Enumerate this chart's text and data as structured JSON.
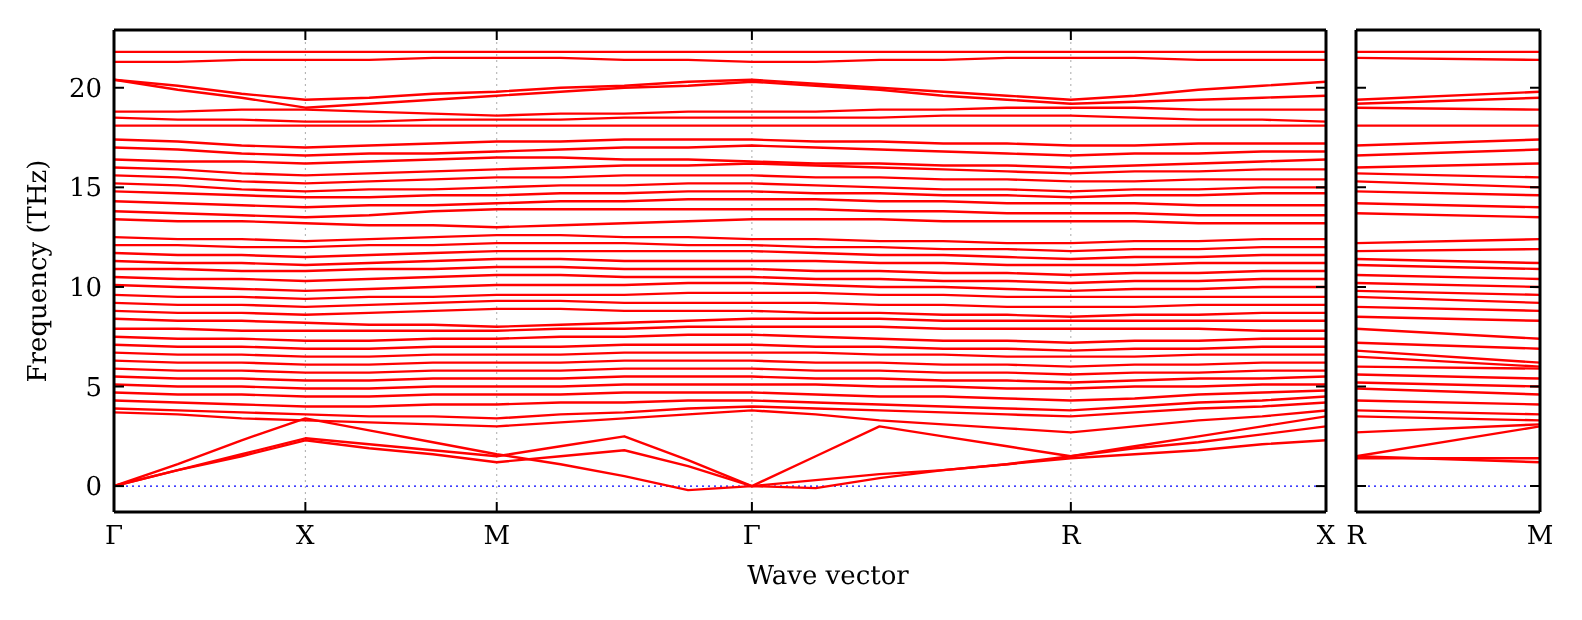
{
  "chart_data": [
    {
      "type": "line",
      "xlabel": "Wave vector",
      "ylabel": "Frequency (THz)",
      "grid": "x",
      "line_style": "solid",
      "marker": "none",
      "categories": [
        "Γ",
        null,
        null,
        "X",
        null,
        null,
        "M",
        null,
        null,
        null,
        "Γ",
        null,
        null,
        null,
        null,
        "R",
        null,
        null,
        null,
        "X"
      ],
      "ylim": [
        -1.3,
        22.9
      ],
      "yticks": [
        0,
        5,
        10,
        15,
        20
      ],
      "ref_lines": [
        {
          "axis": "y",
          "value": 0,
          "color": "#0000ff",
          "line_style": "dotted"
        }
      ],
      "series": [
        {
          "color": "#ff0000",
          "values": [
            21.8,
            21.8,
            21.8,
            21.8,
            21.8,
            21.8,
            21.8,
            21.8,
            21.8,
            21.8,
            21.8,
            21.8,
            21.8,
            21.8,
            21.8,
            21.8,
            21.8,
            21.8,
            21.8,
            21.8
          ]
        },
        {
          "color": "#ff0000",
          "values": [
            21.3,
            21.3,
            21.4,
            21.4,
            21.4,
            21.5,
            21.5,
            21.5,
            21.4,
            21.4,
            21.3,
            21.3,
            21.4,
            21.4,
            21.5,
            21.5,
            21.5,
            21.4,
            21.4,
            21.4
          ]
        },
        {
          "color": "#ff0000",
          "values": [
            20.4,
            20.1,
            19.7,
            19.4,
            19.5,
            19.7,
            19.8,
            20.0,
            20.1,
            20.3,
            20.4,
            20.2,
            20.0,
            19.8,
            19.6,
            19.4,
            19.6,
            19.9,
            20.1,
            20.3
          ]
        },
        {
          "color": "#ff0000",
          "values": [
            20.4,
            19.9,
            19.5,
            19.0,
            19.2,
            19.4,
            19.6,
            19.8,
            20.0,
            20.1,
            20.3,
            20.1,
            19.9,
            19.6,
            19.4,
            19.2,
            19.3,
            19.4,
            19.5,
            19.6
          ]
        },
        {
          "color": "#ff0000",
          "values": [
            18.8,
            18.8,
            18.9,
            18.9,
            18.8,
            18.7,
            18.6,
            18.7,
            18.7,
            18.8,
            18.8,
            18.8,
            18.9,
            18.9,
            19.0,
            19.0,
            19.0,
            18.9,
            18.9,
            18.9
          ]
        },
        {
          "color": "#ff0000",
          "values": [
            18.5,
            18.4,
            18.4,
            18.3,
            18.3,
            18.4,
            18.4,
            18.4,
            18.5,
            18.5,
            18.5,
            18.5,
            18.5,
            18.6,
            18.6,
            18.6,
            18.5,
            18.4,
            18.4,
            18.3
          ]
        },
        {
          "color": "#ff0000",
          "values": [
            18.1,
            18.1,
            18.1,
            18.1,
            18.1,
            18.1,
            18.1,
            18.1,
            18.1,
            18.1,
            18.1,
            18.1,
            18.1,
            18.1,
            18.1,
            18.1,
            18.1,
            18.1,
            18.1,
            18.1
          ]
        },
        {
          "color": "#ff0000",
          "values": [
            17.4,
            17.3,
            17.1,
            17.0,
            17.1,
            17.2,
            17.3,
            17.3,
            17.4,
            17.4,
            17.4,
            17.3,
            17.3,
            17.2,
            17.2,
            17.1,
            17.1,
            17.2,
            17.2,
            17.2
          ]
        },
        {
          "color": "#ff0000",
          "values": [
            17.0,
            16.9,
            16.7,
            16.6,
            16.7,
            16.7,
            16.8,
            16.9,
            17.0,
            17.0,
            17.1,
            17.0,
            16.9,
            16.8,
            16.7,
            16.6,
            16.7,
            16.7,
            16.8,
            16.8
          ]
        },
        {
          "color": "#ff0000",
          "values": [
            16.4,
            16.3,
            16.3,
            16.2,
            16.3,
            16.4,
            16.5,
            16.5,
            16.4,
            16.4,
            16.3,
            16.2,
            16.2,
            16.1,
            16.1,
            16.0,
            16.1,
            16.2,
            16.3,
            16.4
          ]
        },
        {
          "color": "#ff0000",
          "values": [
            16.0,
            15.9,
            15.7,
            15.6,
            15.7,
            15.8,
            15.9,
            16.0,
            16.1,
            16.1,
            16.2,
            16.1,
            16.0,
            15.9,
            15.8,
            15.7,
            15.8,
            15.8,
            15.9,
            15.9
          ]
        },
        {
          "color": "#ff0000",
          "values": [
            15.6,
            15.5,
            15.3,
            15.2,
            15.3,
            15.4,
            15.5,
            15.5,
            15.6,
            15.6,
            15.6,
            15.5,
            15.5,
            15.4,
            15.4,
            15.3,
            15.3,
            15.4,
            15.4,
            15.4
          ]
        },
        {
          "color": "#ff0000",
          "values": [
            15.2,
            15.1,
            14.9,
            14.8,
            14.9,
            14.9,
            15.0,
            15.1,
            15.1,
            15.2,
            15.2,
            15.1,
            15.0,
            14.9,
            14.9,
            14.8,
            14.9,
            14.9,
            15.0,
            15.0
          ]
        },
        {
          "color": "#ff0000",
          "values": [
            14.8,
            14.7,
            14.6,
            14.5,
            14.5,
            14.6,
            14.6,
            14.7,
            14.7,
            14.8,
            14.8,
            14.7,
            14.7,
            14.6,
            14.6,
            14.5,
            14.6,
            14.6,
            14.7,
            14.7
          ]
        },
        {
          "color": "#ff0000",
          "values": [
            14.3,
            14.2,
            14.1,
            14.0,
            14.1,
            14.1,
            14.2,
            14.3,
            14.3,
            14.4,
            14.4,
            14.4,
            14.3,
            14.3,
            14.2,
            14.2,
            14.2,
            14.1,
            14.1,
            14.1
          ]
        },
        {
          "color": "#ff0000",
          "values": [
            13.8,
            13.7,
            13.6,
            13.5,
            13.6,
            13.8,
            13.9,
            13.9,
            13.9,
            13.9,
            13.9,
            13.9,
            13.8,
            13.8,
            13.7,
            13.7,
            13.7,
            13.6,
            13.6,
            13.6
          ]
        },
        {
          "color": "#ff0000",
          "values": [
            13.4,
            13.3,
            13.3,
            13.2,
            13.1,
            13.1,
            13.0,
            13.1,
            13.2,
            13.3,
            13.4,
            13.4,
            13.4,
            13.3,
            13.3,
            13.3,
            13.3,
            13.2,
            13.2,
            13.2
          ]
        },
        {
          "color": "#ff0000",
          "values": [
            12.5,
            12.4,
            12.4,
            12.3,
            12.4,
            12.5,
            12.6,
            12.6,
            12.5,
            12.5,
            12.4,
            12.4,
            12.3,
            12.3,
            12.2,
            12.2,
            12.3,
            12.3,
            12.4,
            12.4
          ]
        },
        {
          "color": "#ff0000",
          "values": [
            12.1,
            12.1,
            12.0,
            12.0,
            12.1,
            12.1,
            12.2,
            12.2,
            12.2,
            12.1,
            12.1,
            12.0,
            12.0,
            11.9,
            11.9,
            11.8,
            11.9,
            11.9,
            12.0,
            12.0
          ]
        },
        {
          "color": "#ff0000",
          "values": [
            11.7,
            11.6,
            11.6,
            11.5,
            11.6,
            11.7,
            11.8,
            11.8,
            11.8,
            11.8,
            11.8,
            11.7,
            11.6,
            11.6,
            11.5,
            11.4,
            11.5,
            11.5,
            11.6,
            11.6
          ]
        },
        {
          "color": "#ff0000",
          "values": [
            11.3,
            11.2,
            11.2,
            11.1,
            11.2,
            11.3,
            11.4,
            11.4,
            11.3,
            11.3,
            11.3,
            11.3,
            11.2,
            11.2,
            11.1,
            11.1,
            11.1,
            11.2,
            11.2,
            11.2
          ]
        },
        {
          "color": "#ff0000",
          "values": [
            10.9,
            10.9,
            10.8,
            10.8,
            10.9,
            10.9,
            11.0,
            11.0,
            10.9,
            10.9,
            10.9,
            10.8,
            10.8,
            10.7,
            10.7,
            10.6,
            10.7,
            10.7,
            10.8,
            10.8
          ]
        },
        {
          "color": "#ff0000",
          "values": [
            10.5,
            10.4,
            10.4,
            10.3,
            10.4,
            10.5,
            10.6,
            10.6,
            10.5,
            10.5,
            10.5,
            10.4,
            10.4,
            10.3,
            10.3,
            10.2,
            10.3,
            10.3,
            10.4,
            10.4
          ]
        },
        {
          "color": "#ff0000",
          "values": [
            10.1,
            10.0,
            9.9,
            9.8,
            9.9,
            10.0,
            10.1,
            10.1,
            10.1,
            10.2,
            10.2,
            10.1,
            10.0,
            10.0,
            9.9,
            9.8,
            9.9,
            9.9,
            10.0,
            10.0
          ]
        },
        {
          "color": "#ff0000",
          "values": [
            9.6,
            9.5,
            9.5,
            9.4,
            9.5,
            9.5,
            9.6,
            9.6,
            9.6,
            9.7,
            9.7,
            9.7,
            9.6,
            9.6,
            9.5,
            9.5,
            9.5,
            9.5,
            9.5,
            9.5
          ]
        },
        {
          "color": "#ff0000",
          "values": [
            9.2,
            9.1,
            9.1,
            9.0,
            9.1,
            9.2,
            9.3,
            9.3,
            9.2,
            9.2,
            9.2,
            9.2,
            9.1,
            9.1,
            9.0,
            9.0,
            9.0,
            9.1,
            9.1,
            9.1
          ]
        },
        {
          "color": "#ff0000",
          "values": [
            8.8,
            8.7,
            8.7,
            8.6,
            8.7,
            8.8,
            8.9,
            8.9,
            8.8,
            8.8,
            8.8,
            8.7,
            8.7,
            8.6,
            8.6,
            8.5,
            8.6,
            8.6,
            8.7,
            8.7
          ]
        },
        {
          "color": "#ff0000",
          "values": [
            8.4,
            8.3,
            8.3,
            8.2,
            8.1,
            8.1,
            8.0,
            8.1,
            8.2,
            8.3,
            8.4,
            8.4,
            8.4,
            8.3,
            8.3,
            8.3,
            8.3,
            8.3,
            8.3,
            8.3
          ]
        },
        {
          "color": "#ff0000",
          "values": [
            7.9,
            7.9,
            7.8,
            7.8,
            7.8,
            7.8,
            7.8,
            7.9,
            7.9,
            8.0,
            8.0,
            8.0,
            8.0,
            7.9,
            7.9,
            7.9,
            7.9,
            7.9,
            7.8,
            7.8
          ]
        },
        {
          "color": "#ff0000",
          "values": [
            7.5,
            7.4,
            7.4,
            7.3,
            7.3,
            7.4,
            7.4,
            7.5,
            7.5,
            7.6,
            7.6,
            7.5,
            7.4,
            7.3,
            7.3,
            7.2,
            7.3,
            7.3,
            7.4,
            7.4
          ]
        },
        {
          "color": "#ff0000",
          "values": [
            7.1,
            7.0,
            7.0,
            6.9,
            6.9,
            7.0,
            7.0,
            7.0,
            7.1,
            7.1,
            7.1,
            7.0,
            7.0,
            6.9,
            6.9,
            6.8,
            6.9,
            6.9,
            7.0,
            7.0
          ]
        },
        {
          "color": "#ff0000",
          "values": [
            6.7,
            6.6,
            6.6,
            6.5,
            6.5,
            6.6,
            6.6,
            6.6,
            6.7,
            6.7,
            6.7,
            6.7,
            6.6,
            6.6,
            6.5,
            6.5,
            6.5,
            6.6,
            6.6,
            6.6
          ]
        },
        {
          "color": "#ff0000",
          "values": [
            6.3,
            6.2,
            6.2,
            6.1,
            6.1,
            6.2,
            6.2,
            6.2,
            6.3,
            6.3,
            6.3,
            6.2,
            6.2,
            6.1,
            6.1,
            6.0,
            6.1,
            6.1,
            6.2,
            6.2
          ]
        },
        {
          "color": "#ff0000",
          "values": [
            5.9,
            5.8,
            5.8,
            5.7,
            5.7,
            5.8,
            5.8,
            5.8,
            5.9,
            5.9,
            5.9,
            5.8,
            5.8,
            5.7,
            5.7,
            5.6,
            5.7,
            5.7,
            5.8,
            5.8
          ]
        },
        {
          "color": "#ff0000",
          "values": [
            5.5,
            5.4,
            5.4,
            5.3,
            5.3,
            5.4,
            5.4,
            5.4,
            5.5,
            5.5,
            5.5,
            5.4,
            5.4,
            5.3,
            5.3,
            5.2,
            5.3,
            5.4,
            5.4,
            5.5
          ]
        },
        {
          "color": "#ff0000",
          "values": [
            5.1,
            5.0,
            5.0,
            4.9,
            4.9,
            5.0,
            5.0,
            5.0,
            5.1,
            5.1,
            5.1,
            5.1,
            5.0,
            5.0,
            4.9,
            4.9,
            5.0,
            5.0,
            5.1,
            5.1
          ]
        },
        {
          "color": "#ff0000",
          "values": [
            4.7,
            4.6,
            4.6,
            4.5,
            4.5,
            4.6,
            4.6,
            4.6,
            4.7,
            4.7,
            4.7,
            4.6,
            4.5,
            4.5,
            4.4,
            4.3,
            4.4,
            4.6,
            4.7,
            4.8
          ]
        },
        {
          "color": "#ff0000",
          "values": [
            4.3,
            4.2,
            4.1,
            4.0,
            4.0,
            4.1,
            4.1,
            4.2,
            4.2,
            4.3,
            4.3,
            4.2,
            4.1,
            4.0,
            3.9,
            3.8,
            4.0,
            4.2,
            4.3,
            4.5
          ]
        },
        {
          "color": "#ff0000",
          "values": [
            3.9,
            3.8,
            3.7,
            3.6,
            3.5,
            3.5,
            3.4,
            3.6,
            3.7,
            3.9,
            4.0,
            3.9,
            3.8,
            3.7,
            3.6,
            3.5,
            3.7,
            3.9,
            4.0,
            4.2
          ]
        },
        {
          "color": "#ff0000",
          "values": [
            3.7,
            3.6,
            3.4,
            3.3,
            3.2,
            3.1,
            3.0,
            3.2,
            3.4,
            3.6,
            3.8,
            3.6,
            3.3,
            3.1,
            2.9,
            2.7,
            3.0,
            3.3,
            3.5,
            3.8
          ]
        },
        {
          "color": "#ff0000",
          "values": [
            0,
            0.8,
            1.5,
            2.3,
            1.9,
            1.6,
            1.2,
            1.5,
            1.8,
            1.0,
            0,
            0.3,
            0.6,
            0.8,
            1.1,
            1.4,
            1.6,
            1.8,
            2.1,
            2.3
          ]
        },
        {
          "color": "#ff0000",
          "values": [
            0,
            0.8,
            1.6,
            2.4,
            2.1,
            1.8,
            1.5,
            2.0,
            2.5,
            1.3,
            0,
            1.5,
            3.0,
            2.5,
            2.0,
            1.5,
            2.0,
            2.5,
            3.0,
            3.5
          ]
        },
        {
          "color": "#ff0000",
          "values": [
            0,
            1.1,
            2.3,
            3.4,
            2.8,
            2.2,
            1.6,
            1.1,
            0.5,
            -0.2,
            0,
            -0.1,
            0.4,
            0.8,
            1.1,
            1.5,
            1.9,
            2.2,
            2.6,
            3.0
          ]
        }
      ]
    },
    {
      "type": "line",
      "line_style": "solid",
      "marker": "none",
      "tick_labels": "x",
      "categories": [
        "R",
        "M"
      ],
      "ylim": [
        -1.3,
        22.9
      ],
      "yticks": [
        {
          "value": 0,
          "label": null
        },
        {
          "value": 5,
          "label": null
        },
        {
          "value": 10,
          "label": null
        },
        {
          "value": 15,
          "label": null
        },
        {
          "value": 20,
          "label": null
        }
      ],
      "ref_lines": [
        {
          "axis": "y",
          "value": 0,
          "color": "#0000ff",
          "line_style": "dotted"
        }
      ],
      "series": [
        {
          "color": "#ff0000",
          "values": [
            21.8,
            21.8
          ]
        },
        {
          "color": "#ff0000",
          "values": [
            21.5,
            21.4
          ]
        },
        {
          "color": "#ff0000",
          "values": [
            19.4,
            19.8
          ]
        },
        {
          "color": "#ff0000",
          "values": [
            19.2,
            19.5
          ]
        },
        {
          "color": "#ff0000",
          "values": [
            19.0,
            18.9
          ]
        },
        {
          "color": "#ff0000",
          "values": [
            18.1,
            18.1
          ]
        },
        {
          "color": "#ff0000",
          "values": [
            17.1,
            17.4
          ]
        },
        {
          "color": "#ff0000",
          "values": [
            16.6,
            16.9
          ]
        },
        {
          "color": "#ff0000",
          "values": [
            16.0,
            16.2
          ]
        },
        {
          "color": "#ff0000",
          "values": [
            15.7,
            15.5
          ]
        },
        {
          "color": "#ff0000",
          "values": [
            15.3,
            15.0
          ]
        },
        {
          "color": "#ff0000",
          "values": [
            14.8,
            14.6
          ]
        },
        {
          "color": "#ff0000",
          "values": [
            14.2,
            14.0
          ]
        },
        {
          "color": "#ff0000",
          "values": [
            13.7,
            13.5
          ]
        },
        {
          "color": "#ff0000",
          "values": [
            12.2,
            12.4
          ]
        },
        {
          "color": "#ff0000",
          "values": [
            11.8,
            11.9
          ]
        },
        {
          "color": "#ff0000",
          "values": [
            11.4,
            11.2
          ]
        },
        {
          "color": "#ff0000",
          "values": [
            11.1,
            10.9
          ]
        },
        {
          "color": "#ff0000",
          "values": [
            10.6,
            10.4
          ]
        },
        {
          "color": "#ff0000",
          "values": [
            10.2,
            10.0
          ]
        },
        {
          "color": "#ff0000",
          "values": [
            9.8,
            9.6
          ]
        },
        {
          "color": "#ff0000",
          "values": [
            9.5,
            9.2
          ]
        },
        {
          "color": "#ff0000",
          "values": [
            9.0,
            8.8
          ]
        },
        {
          "color": "#ff0000",
          "values": [
            8.5,
            8.3
          ]
        },
        {
          "color": "#ff0000",
          "values": [
            7.9,
            7.4
          ]
        },
        {
          "color": "#ff0000",
          "values": [
            7.2,
            6.9
          ]
        },
        {
          "color": "#ff0000",
          "values": [
            6.8,
            6.2
          ]
        },
        {
          "color": "#ff0000",
          "values": [
            6.5,
            6.0
          ]
        },
        {
          "color": "#ff0000",
          "values": [
            6.0,
            5.9
          ]
        },
        {
          "color": "#ff0000",
          "values": [
            5.6,
            5.4
          ]
        },
        {
          "color": "#ff0000",
          "values": [
            5.2,
            5.0
          ]
        },
        {
          "color": "#ff0000",
          "values": [
            4.9,
            4.6
          ]
        },
        {
          "color": "#ff0000",
          "values": [
            4.3,
            4.1
          ]
        },
        {
          "color": "#ff0000",
          "values": [
            3.8,
            3.6
          ]
        },
        {
          "color": "#ff0000",
          "values": [
            3.5,
            3.3
          ]
        },
        {
          "color": "#ff0000",
          "values": [
            2.7,
            3.1
          ]
        },
        {
          "color": "#ff0000",
          "values": [
            1.5,
            3.0
          ]
        },
        {
          "color": "#ff0000",
          "values": [
            1.4,
            1.4
          ]
        },
        {
          "color": "#ff0000",
          "values": [
            1.5,
            1.2
          ]
        }
      ]
    }
  ]
}
